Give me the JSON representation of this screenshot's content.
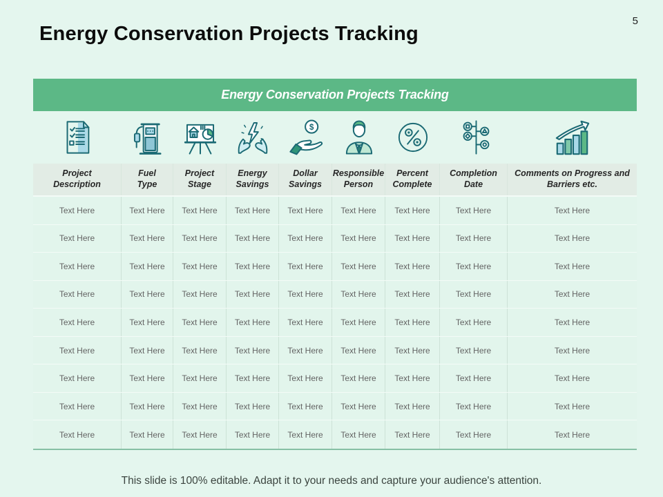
{
  "slide": {
    "title": "Energy Conservation Projects Tracking",
    "page_number": "5",
    "footer": "This slide is 100% editable. Adapt it to your needs and capture your audience's attention."
  },
  "table": {
    "banner_title": "Energy Conservation Projects Tracking",
    "columns": [
      {
        "label": "Project\nDescription",
        "icon": "checklist-document-icon"
      },
      {
        "label": "Fuel\nType",
        "icon": "fuel-pump-icon"
      },
      {
        "label": "Project\nStage",
        "icon": "presentation-board-icon"
      },
      {
        "label": "Energy\nSavings",
        "icon": "hands-energy-icon"
      },
      {
        "label": "Dollar\nSavings",
        "icon": "hand-dollar-icon"
      },
      {
        "label": "Responsible\nPerson",
        "icon": "person-icon"
      },
      {
        "label": "Percent\nComplete",
        "icon": "percent-circle-icon"
      },
      {
        "label": "Completion\nDate",
        "icon": "milestone-timeline-icon"
      },
      {
        "label": "Comments on Progress and\nBarriers etc.",
        "icon": "growth-chart-icon"
      }
    ],
    "rows": [
      [
        "Text Here",
        "Text Here",
        "Text Here",
        "Text Here",
        "Text Here",
        "Text Here",
        "Text Here",
        "Text Here",
        "Text Here"
      ],
      [
        "Text Here",
        "Text Here",
        "Text Here",
        "Text Here",
        "Text Here",
        "Text Here",
        "Text Here",
        "Text Here",
        "Text Here"
      ],
      [
        "Text Here",
        "Text Here",
        "Text Here",
        "Text Here",
        "Text Here",
        "Text Here",
        "Text Here",
        "Text Here",
        "Text Here"
      ],
      [
        "Text Here",
        "Text Here",
        "Text Here",
        "Text Here",
        "Text Here",
        "Text Here",
        "Text Here",
        "Text Here",
        "Text Here"
      ],
      [
        "Text Here",
        "Text Here",
        "Text Here",
        "Text Here",
        "Text Here",
        "Text Here",
        "Text Here",
        "Text Here",
        "Text Here"
      ],
      [
        "Text Here",
        "Text Here",
        "Text Here",
        "Text Here",
        "Text Here",
        "Text Here",
        "Text Here",
        "Text Here",
        "Text Here"
      ],
      [
        "Text Here",
        "Text Here",
        "Text Here",
        "Text Here",
        "Text Here",
        "Text Here",
        "Text Here",
        "Text Here",
        "Text Here"
      ],
      [
        "Text Here",
        "Text Here",
        "Text Here",
        "Text Here",
        "Text Here",
        "Text Here",
        "Text Here",
        "Text Here",
        "Text Here"
      ],
      [
        "Text Here",
        "Text Here",
        "Text Here",
        "Text Here",
        "Text Here",
        "Text Here",
        "Text Here",
        "Text Here",
        "Text Here"
      ]
    ]
  },
  "colors": {
    "banner_green": "#5cb886",
    "slide_background": "#e4f6ee",
    "header_background": "#e2ece5",
    "icon_teal": "#1b6a74",
    "icon_light_blue": "#a9d9e8",
    "icon_green": "#5cb886"
  }
}
